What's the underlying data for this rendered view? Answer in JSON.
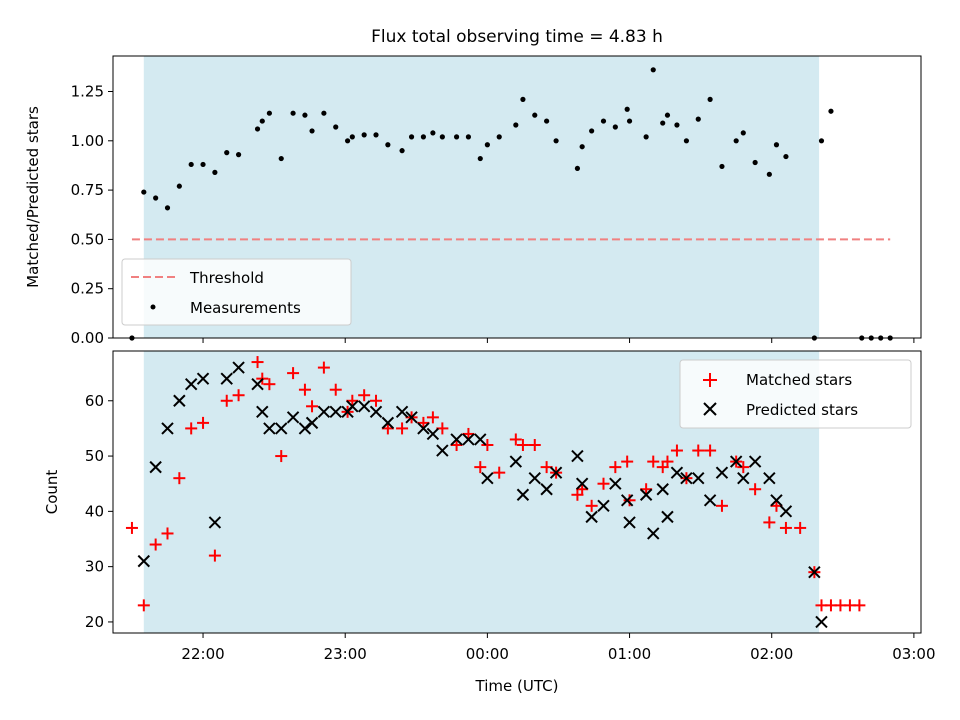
{
  "figure": {
    "title": "Flux total observing time = 4.83 h",
    "xlabel": "Time (UTC)"
  },
  "chart_data": [
    {
      "type": "scatter",
      "panel": "top",
      "ylabel": "Matched/Predicted stars",
      "xlim": [
        "21:22",
        "03:03"
      ],
      "ylim": [
        0,
        1.43
      ],
      "x_ticks": [
        "22:00",
        "23:00",
        "00:00",
        "01:00",
        "02:00",
        "03:00"
      ],
      "y_ticks": [
        "0.00",
        "0.25",
        "0.50",
        "0.75",
        "1.00",
        "1.25"
      ],
      "shaded_span": {
        "start": "21:35",
        "end": "02:20",
        "color": "#d4eaf1"
      },
      "threshold": {
        "name": "Threshold",
        "y": 0.5,
        "x_start": "21:30",
        "x_end": "02:50",
        "color": "#f08080"
      },
      "legend": {
        "placement": "lower-left",
        "entries": [
          "Threshold",
          "Measurements"
        ]
      },
      "series": [
        {
          "name": "Measurements",
          "color": "#000000",
          "points": [
            [
              "21:30",
              0.0
            ],
            [
              "21:35",
              0.74
            ],
            [
              "21:40",
              0.71
            ],
            [
              "21:45",
              0.66
            ],
            [
              "21:50",
              0.77
            ],
            [
              "21:55",
              0.88
            ],
            [
              "22:00",
              0.88
            ],
            [
              "22:05",
              0.84
            ],
            [
              "22:10",
              0.94
            ],
            [
              "22:15",
              0.93
            ],
            [
              "22:23",
              1.06
            ],
            [
              "22:25",
              1.1
            ],
            [
              "22:28",
              1.14
            ],
            [
              "22:33",
              0.91
            ],
            [
              "22:38",
              1.14
            ],
            [
              "22:43",
              1.13
            ],
            [
              "22:46",
              1.05
            ],
            [
              "22:51",
              1.14
            ],
            [
              "22:56",
              1.07
            ],
            [
              "23:01",
              1.0
            ],
            [
              "23:03",
              1.02
            ],
            [
              "23:08",
              1.03
            ],
            [
              "23:13",
              1.03
            ],
            [
              "23:18",
              0.98
            ],
            [
              "23:24",
              0.95
            ],
            [
              "23:28",
              1.02
            ],
            [
              "23:33",
              1.02
            ],
            [
              "23:37",
              1.04
            ],
            [
              "23:41",
              1.02
            ],
            [
              "23:47",
              1.02
            ],
            [
              "23:52",
              1.02
            ],
            [
              "23:57",
              0.91
            ],
            [
              "00:00",
              0.98
            ],
            [
              "00:05",
              1.02
            ],
            [
              "00:12",
              1.08
            ],
            [
              "00:15",
              1.21
            ],
            [
              "00:20",
              1.13
            ],
            [
              "00:25",
              1.1
            ],
            [
              "00:29",
              1.0
            ],
            [
              "00:38",
              0.86
            ],
            [
              "00:40",
              0.97
            ],
            [
              "00:44",
              1.05
            ],
            [
              "00:49",
              1.1
            ],
            [
              "00:54",
              1.07
            ],
            [
              "00:59",
              1.16
            ],
            [
              "01:00",
              1.1
            ],
            [
              "01:07",
              1.02
            ],
            [
              "01:10",
              1.36
            ],
            [
              "01:14",
              1.09
            ],
            [
              "01:16",
              1.13
            ],
            [
              "01:20",
              1.08
            ],
            [
              "01:24",
              1.0
            ],
            [
              "01:29",
              1.11
            ],
            [
              "01:34",
              1.21
            ],
            [
              "01:39",
              0.87
            ],
            [
              "01:45",
              1.0
            ],
            [
              "01:48",
              1.04
            ],
            [
              "01:53",
              0.89
            ],
            [
              "01:59",
              0.83
            ],
            [
              "02:02",
              0.98
            ],
            [
              "02:06",
              0.92
            ],
            [
              "02:18",
              0.0
            ],
            [
              "02:21",
              1.0
            ],
            [
              "02:25",
              1.15
            ],
            [
              "02:38",
              0.0
            ],
            [
              "02:42",
              0.0
            ],
            [
              "02:46",
              0.0
            ],
            [
              "02:50",
              0.0
            ]
          ]
        }
      ]
    },
    {
      "type": "scatter",
      "panel": "bottom",
      "ylabel": "Count",
      "xlim": [
        "21:22",
        "03:03"
      ],
      "ylim": [
        18,
        69
      ],
      "x_ticks": [
        "22:00",
        "23:00",
        "00:00",
        "01:00",
        "02:00",
        "03:00"
      ],
      "y_ticks": [
        "20",
        "30",
        "40",
        "50",
        "60"
      ],
      "shaded_span": {
        "start": "21:35",
        "end": "02:20",
        "color": "#d4eaf1"
      },
      "legend": {
        "placement": "upper-right",
        "entries": [
          "Matched stars",
          "Predicted stars"
        ]
      },
      "series": [
        {
          "name": "Matched stars",
          "marker": "plus",
          "color": "#ff0000",
          "points": [
            [
              "21:30",
              37
            ],
            [
              "21:35",
              23
            ],
            [
              "21:40",
              34
            ],
            [
              "21:45",
              36
            ],
            [
              "21:50",
              46
            ],
            [
              "21:55",
              55
            ],
            [
              "22:00",
              56
            ],
            [
              "22:05",
              32
            ],
            [
              "22:10",
              60
            ],
            [
              "22:15",
              61
            ],
            [
              "22:23",
              67
            ],
            [
              "22:25",
              64
            ],
            [
              "22:28",
              63
            ],
            [
              "22:33",
              50
            ],
            [
              "22:38",
              65
            ],
            [
              "22:43",
              62
            ],
            [
              "22:46",
              59
            ],
            [
              "22:51",
              66
            ],
            [
              "22:56",
              62
            ],
            [
              "23:01",
              58
            ],
            [
              "23:03",
              60
            ],
            [
              "23:08",
              61
            ],
            [
              "23:13",
              60
            ],
            [
              "23:18",
              55
            ],
            [
              "23:24",
              55
            ],
            [
              "23:28",
              57
            ],
            [
              "23:33",
              56
            ],
            [
              "23:37",
              57
            ],
            [
              "23:41",
              55
            ],
            [
              "23:47",
              52
            ],
            [
              "23:52",
              54
            ],
            [
              "23:57",
              48
            ],
            [
              "00:00",
              52
            ],
            [
              "00:05",
              47
            ],
            [
              "00:12",
              53
            ],
            [
              "00:15",
              52
            ],
            [
              "00:20",
              52
            ],
            [
              "00:25",
              48
            ],
            [
              "00:29",
              47
            ],
            [
              "00:38",
              43
            ],
            [
              "00:40",
              44
            ],
            [
              "00:44",
              41
            ],
            [
              "00:49",
              45
            ],
            [
              "00:54",
              48
            ],
            [
              "00:59",
              49
            ],
            [
              "01:00",
              42
            ],
            [
              "01:07",
              44
            ],
            [
              "01:10",
              49
            ],
            [
              "01:14",
              48
            ],
            [
              "01:16",
              49
            ],
            [
              "01:20",
              51
            ],
            [
              "01:24",
              46
            ],
            [
              "01:29",
              51
            ],
            [
              "01:34",
              51
            ],
            [
              "01:39",
              41
            ],
            [
              "01:45",
              49
            ],
            [
              "01:48",
              48
            ],
            [
              "01:53",
              44
            ],
            [
              "01:59",
              38
            ],
            [
              "02:02",
              41
            ],
            [
              "02:06",
              37
            ],
            [
              "02:12",
              37
            ],
            [
              "02:18",
              29
            ],
            [
              "02:21",
              23
            ],
            [
              "02:25",
              23
            ],
            [
              "02:29",
              23
            ],
            [
              "02:33",
              23
            ],
            [
              "02:37",
              23
            ]
          ]
        },
        {
          "name": "Predicted stars",
          "marker": "x",
          "color": "#000000",
          "points": [
            [
              "21:35",
              31
            ],
            [
              "21:40",
              48
            ],
            [
              "21:45",
              55
            ],
            [
              "21:50",
              60
            ],
            [
              "21:55",
              63
            ],
            [
              "22:00",
              64
            ],
            [
              "22:05",
              38
            ],
            [
              "22:10",
              64
            ],
            [
              "22:15",
              66
            ],
            [
              "22:23",
              63
            ],
            [
              "22:25",
              58
            ],
            [
              "22:28",
              55
            ],
            [
              "22:33",
              55
            ],
            [
              "22:38",
              57
            ],
            [
              "22:43",
              55
            ],
            [
              "22:46",
              56
            ],
            [
              "22:51",
              58
            ],
            [
              "22:56",
              58
            ],
            [
              "23:01",
              58
            ],
            [
              "23:03",
              59
            ],
            [
              "23:08",
              59
            ],
            [
              "23:13",
              58
            ],
            [
              "23:18",
              56
            ],
            [
              "23:24",
              58
            ],
            [
              "23:28",
              57
            ],
            [
              "23:33",
              55
            ],
            [
              "23:37",
              54
            ],
            [
              "23:41",
              51
            ],
            [
              "23:47",
              53
            ],
            [
              "23:52",
              53
            ],
            [
              "23:57",
              53
            ],
            [
              "00:00",
              46
            ],
            [
              "00:12",
              49
            ],
            [
              "00:15",
              43
            ],
            [
              "00:20",
              46
            ],
            [
              "00:25",
              44
            ],
            [
              "00:29",
              47
            ],
            [
              "00:38",
              50
            ],
            [
              "00:40",
              45
            ],
            [
              "00:44",
              39
            ],
            [
              "00:49",
              41
            ],
            [
              "00:54",
              45
            ],
            [
              "00:59",
              42
            ],
            [
              "01:00",
              38
            ],
            [
              "01:07",
              43
            ],
            [
              "01:10",
              36
            ],
            [
              "01:14",
              44
            ],
            [
              "01:16",
              39
            ],
            [
              "01:20",
              47
            ],
            [
              "01:24",
              46
            ],
            [
              "01:29",
              46
            ],
            [
              "01:34",
              42
            ],
            [
              "01:39",
              47
            ],
            [
              "01:45",
              49
            ],
            [
              "01:48",
              46
            ],
            [
              "01:53",
              49
            ],
            [
              "01:59",
              46
            ],
            [
              "02:02",
              42
            ],
            [
              "02:06",
              40
            ],
            [
              "02:18",
              29
            ],
            [
              "02:21",
              20
            ]
          ]
        }
      ]
    }
  ]
}
